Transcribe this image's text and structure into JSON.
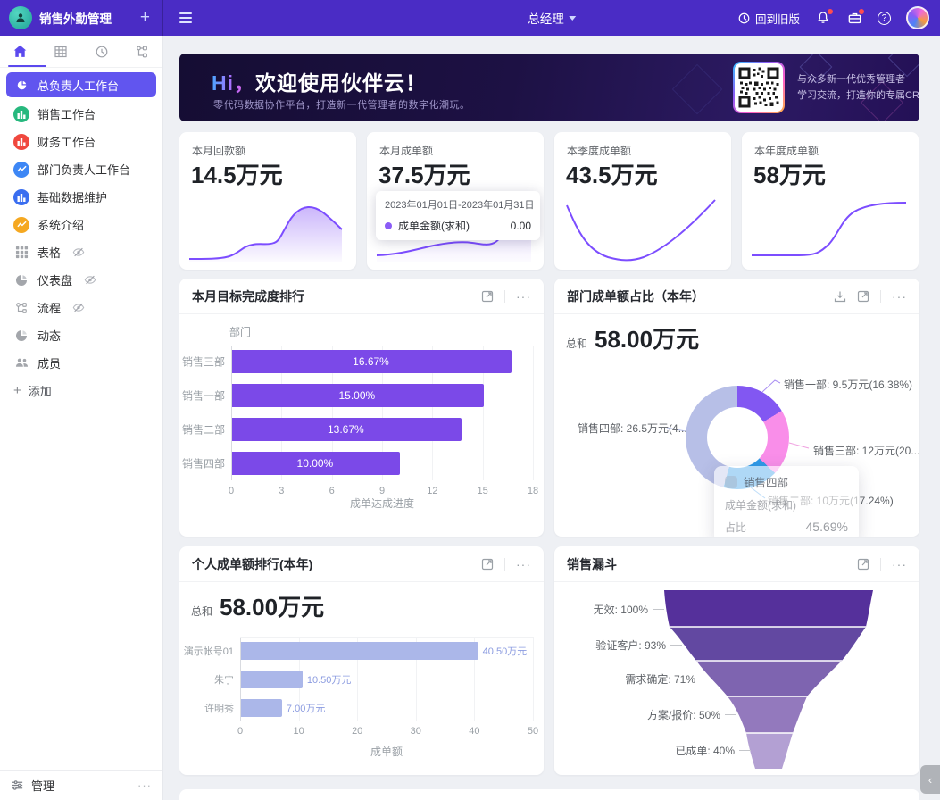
{
  "icons": {
    "plus": "+",
    "more": "···",
    "help": "?",
    "collapse": "‹"
  },
  "topbar": {
    "app_title": "销售外勤管理",
    "role": "总经理",
    "back_to_old_label": "回到旧版"
  },
  "sidebar": {
    "items": [
      {
        "label": "总负责人工作台",
        "icon": "pie",
        "color": "#6155ef",
        "active": true,
        "hidden_eye": false
      },
      {
        "label": "销售工作台",
        "icon": "bars",
        "color": "#27b87e",
        "active": false,
        "hidden_eye": false
      },
      {
        "label": "财务工作台",
        "icon": "bars",
        "color": "#f0483e",
        "active": false,
        "hidden_eye": false
      },
      {
        "label": "部门负责人工作台",
        "icon": "line",
        "color": "#3d87f5",
        "active": false,
        "hidden_eye": false
      },
      {
        "label": "基础数据维护",
        "icon": "bars",
        "color": "#3a6ef0",
        "active": false,
        "hidden_eye": false
      },
      {
        "label": "系统介绍",
        "icon": "line",
        "color": "#f5a821",
        "active": false,
        "hidden_eye": false
      },
      {
        "label": "表格",
        "icon": "grid",
        "color": "",
        "active": false,
        "hidden_eye": true
      },
      {
        "label": "仪表盘",
        "icon": "gauge",
        "color": "",
        "active": false,
        "hidden_eye": true
      },
      {
        "label": "流程",
        "icon": "flow",
        "color": "",
        "active": false,
        "hidden_eye": true
      },
      {
        "label": "动态",
        "icon": "activity",
        "color": "",
        "active": false,
        "hidden_eye": false
      },
      {
        "label": "成员",
        "icon": "people",
        "color": "",
        "active": false,
        "hidden_eye": false
      }
    ],
    "add_label": "添加",
    "manage_label": "管理"
  },
  "banner": {
    "title_hi": "Hi，",
    "title_rest": "欢迎使用伙伴云！",
    "subtitle": "零代码数据协作平台，打造新一代管理者的数字化潮玩。",
    "qr_caption_line1": "与众多新一代优秀管理者",
    "qr_caption_line2": "学习交流，打造你的专属CRM"
  },
  "stat_cards": [
    {
      "label": "本月回款额",
      "value": "14.5万元"
    },
    {
      "label": "本月成单额",
      "value": "37.5万元",
      "tooltip": {
        "date_range": "2023年01月01日-2023年01月31日",
        "series": "成单金额(求和)",
        "value": "0.00"
      }
    },
    {
      "label": "本季度成单额",
      "value": "43.5万元"
    },
    {
      "label": "本年度成单额",
      "value": "58万元"
    }
  ],
  "panels": {
    "target_rank": {
      "title": "本月目标完成度排行",
      "axis_title_y": "部门",
      "axis_title_x": "成单达成进度",
      "categories": [
        "销售三部",
        "销售一部",
        "销售二部",
        "销售四部"
      ],
      "values": [
        16.67,
        15.0,
        13.67,
        10.0
      ],
      "value_labels": [
        "16.67%",
        "15.00%",
        "13.67%",
        "10.00%"
      ],
      "x_ticks": [
        0,
        3,
        6,
        9,
        12,
        15,
        18
      ],
      "x_max": 18,
      "bar_color": "#7b49e8"
    },
    "dept_share": {
      "title": "部门成单额占比（本年）",
      "sum_label": "总和",
      "sum_value": "58.00万元",
      "slices": [
        {
          "name": "销售一部",
          "callout": "销售一部: 9.5万元(16.38%)",
          "percent": 16.38,
          "color": "#8257f2",
          "leader_color": "#a98ef2"
        },
        {
          "name": "销售三部",
          "callout": "销售三部: 12万元(20....",
          "percent": 20.69,
          "color": "#f98ee9",
          "leader_color": "#f0a0e0"
        },
        {
          "name": "销售二部",
          "callout": "销售二部: 10万元(17.24%)",
          "percent": 17.24,
          "color": "#2e9ae8",
          "leader_color": "#58a8ee"
        },
        {
          "name": "销售四部",
          "callout": "销售四部: 26.5万元(4...",
          "percent": 45.69,
          "color": "#b7bfe7",
          "leader_color": "#b8c0e8"
        }
      ],
      "tooltip": {
        "title": "销售四部",
        "row_label": "成单金额(求和)",
        "ratio_label": "占比",
        "ratio_value": "45.69%"
      }
    },
    "personal_rank": {
      "title": "个人成单额排行(本年)",
      "sum_label": "总和",
      "sum_value": "58.00万元",
      "axis_title_x": "成单额",
      "categories": [
        "演示帐号01",
        "朱宁",
        "许明秀"
      ],
      "values": [
        40.5,
        10.5,
        7.0
      ],
      "value_labels": [
        "40.50万元",
        "10.50万元",
        "7.00万元"
      ],
      "x_ticks": [
        0,
        10,
        20,
        30,
        40,
        50
      ],
      "x_max": 50,
      "bar_color": "#abb7e9"
    },
    "funnel": {
      "title": "销售漏斗",
      "stages": [
        {
          "label": "无效: 100%",
          "percent": 100,
          "color": "#55309b"
        },
        {
          "label": "验证客户: 93%",
          "percent": 93,
          "color": "#6248a1"
        },
        {
          "label": "需求确定: 71%",
          "percent": 71,
          "color": "#7e64b0"
        },
        {
          "label": "方案/报价: 50%",
          "percent": 50,
          "color": "#9379bd"
        },
        {
          "label": "已成单: 40%",
          "percent": 40,
          "color": "#b3a0d3"
        }
      ]
    }
  },
  "chart_data": [
    {
      "type": "bar",
      "title": "本月目标完成度排行",
      "orientation": "horizontal",
      "categories": [
        "销售三部",
        "销售一部",
        "销售二部",
        "销售四部"
      ],
      "values": [
        16.67,
        15.0,
        13.67,
        10.0
      ],
      "xlabel": "成单达成进度",
      "ylabel": "部门",
      "xlim": [
        0,
        18
      ],
      "grid": true
    },
    {
      "type": "pie",
      "title": "部门成单额占比（本年）",
      "subtitle": "总和 58.00万元",
      "donut": true,
      "labels": [
        "销售一部",
        "销售三部",
        "销售二部",
        "销售四部"
      ],
      "values_wan_yuan": [
        9.5,
        12,
        10,
        26.5
      ],
      "percents": [
        16.38,
        20.69,
        17.24,
        45.69
      ]
    },
    {
      "type": "bar",
      "title": "个人成单额排行(本年)",
      "subtitle": "总和 58.00万元",
      "orientation": "horizontal",
      "categories": [
        "演示帐号01",
        "朱宁",
        "许明秀"
      ],
      "values": [
        40.5,
        10.5,
        7.0
      ],
      "xlabel": "成单额",
      "xlim": [
        0,
        50
      ],
      "grid": true
    },
    {
      "type": "funnel",
      "title": "销售漏斗",
      "stages": [
        "无效",
        "验证客户",
        "需求确定",
        "方案/报价",
        "已成单"
      ],
      "percents": [
        100,
        93,
        71,
        50,
        40
      ]
    },
    {
      "type": "area",
      "title": "本月回款额 sparkline",
      "values_hint": "rising hump to the right"
    },
    {
      "type": "line",
      "title": "本月成单额 sparkline",
      "values_hint": "gentle wave, steep rise at right; tooltip 2023-01 成单金额(求和)=0.00"
    },
    {
      "type": "line",
      "title": "本季度成单额 sparkline",
      "values_hint": "U-shaped curve"
    },
    {
      "type": "line",
      "title": "本年度成单额 sparkline",
      "values_hint": "S-curve rising to plateau"
    }
  ]
}
